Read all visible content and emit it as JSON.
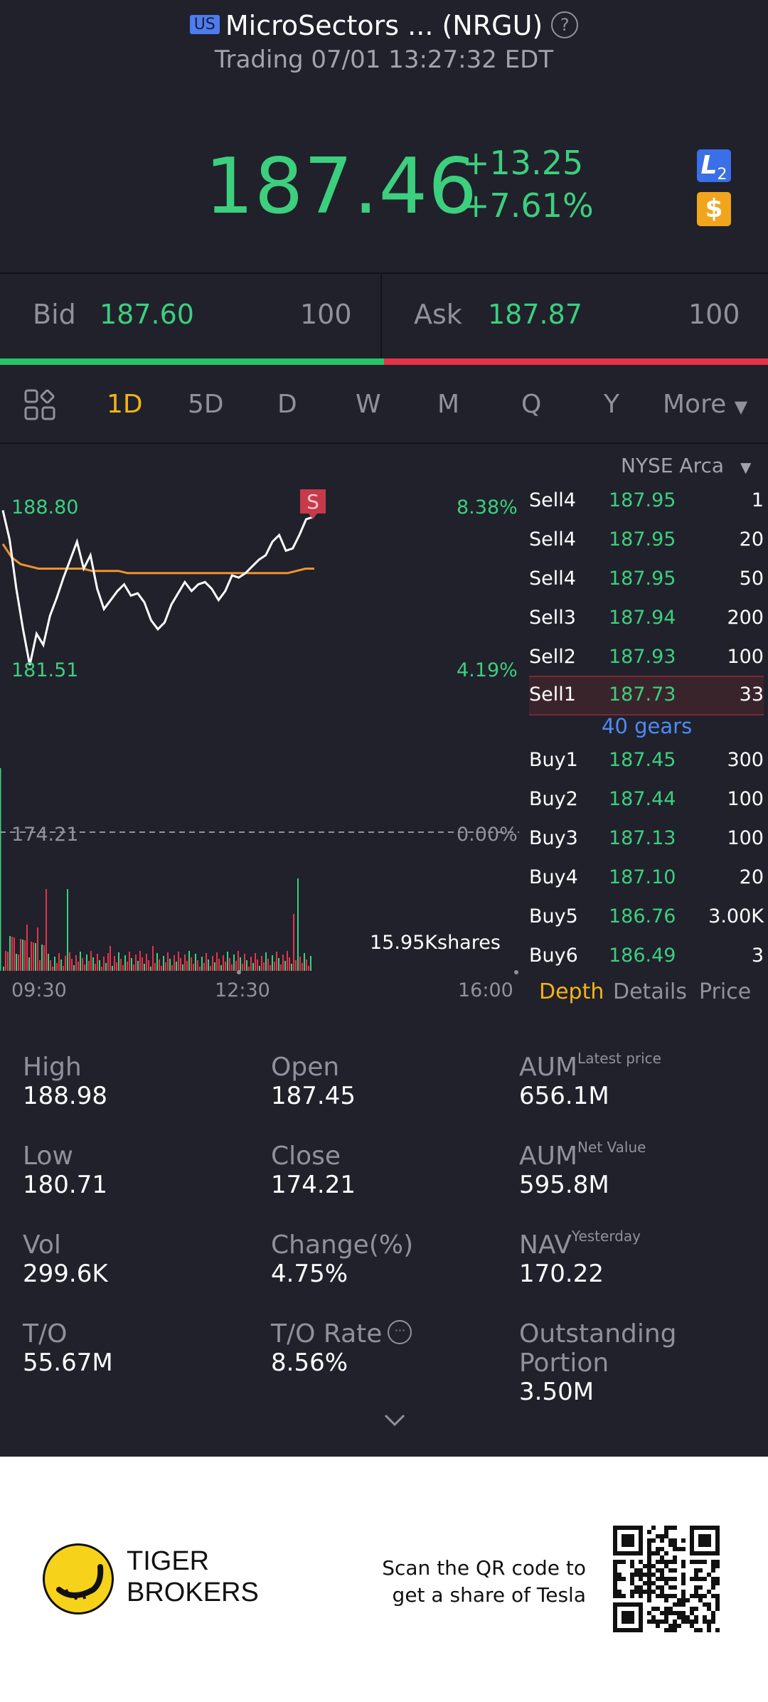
{
  "header": {
    "market_badge": "US",
    "title": "MicroSectors ... (NRGU)",
    "status": "Trading 07/01 13:27:32 EDT",
    "price": "187.46",
    "change": "+13.25",
    "change_pct": "+7.61%",
    "l2_label": "L",
    "l2_sub": "2",
    "dollar_label": "$"
  },
  "bid_ask": {
    "bid_label": "Bid",
    "bid_price": "187.60",
    "bid_qty": "100",
    "ask_label": "Ask",
    "ask_price": "187.87",
    "ask_qty": "100"
  },
  "tabs": [
    "1D",
    "5D",
    "D",
    "W",
    "M",
    "Q",
    "Y",
    "More"
  ],
  "active_tab": "1D",
  "chart": {
    "hi_label": "188.80",
    "lo_label": "181.51",
    "hi_pct": "8.38%",
    "lo_pct": "4.19%",
    "base_label": "174.21",
    "base_pct": "0.00%",
    "volume_label": "15.95Kshares",
    "time_start": "09:30",
    "time_mid": "12:30",
    "time_end": "16:00",
    "signal": "S",
    "colors": {
      "price_line": "#ffffff",
      "avg_line": "#f0932b",
      "up": "#3ccf7e",
      "down": "#e5344a"
    }
  },
  "chart_data": {
    "type": "line",
    "title": "",
    "xlabel": "",
    "ylabel": "",
    "x_ticks": [
      "09:30",
      "12:30",
      "16:00"
    ],
    "ylim": [
      181.51,
      188.8
    ],
    "series": [
      {
        "values": [
          188.5,
          187.2,
          185.0,
          183.2,
          181.6,
          183.0,
          182.5,
          183.8,
          184.6,
          185.5,
          186.3,
          187.1,
          185.9,
          186.5,
          185.0,
          184.1,
          184.5,
          184.9,
          185.2,
          184.7,
          184.8,
          184.4,
          183.6,
          183.2,
          183.5,
          184.3,
          184.8,
          185.3,
          184.9,
          185.2,
          185.3,
          185.0,
          184.5,
          184.9,
          185.6,
          185.5,
          185.7,
          186.0,
          186.3,
          186.5,
          187.1,
          187.4,
          186.7,
          186.8,
          187.4,
          188.1,
          188.2
        ]
      },
      {
        "values": [
          187.0,
          186.4,
          186.1,
          186.0,
          185.9,
          185.9,
          185.9,
          185.9,
          185.9,
          185.9,
          185.8,
          185.8,
          185.8,
          185.8,
          185.7,
          185.7,
          185.7,
          185.7,
          185.7,
          185.7,
          185.7,
          185.7,
          185.7,
          185.7,
          185.7,
          185.7,
          185.7,
          185.7,
          185.7,
          185.7,
          185.7,
          185.7,
          185.7,
          185.8,
          185.9,
          185.9
        ]
      }
    ]
  },
  "order_book": {
    "exchange": "NYSE Arca",
    "sells": [
      {
        "name": "Sell4",
        "price": "187.95",
        "qty": "1"
      },
      {
        "name": "Sell4",
        "price": "187.95",
        "qty": "20"
      },
      {
        "name": "Sell4",
        "price": "187.95",
        "qty": "50"
      },
      {
        "name": "Sell3",
        "price": "187.94",
        "qty": "200"
      },
      {
        "name": "Sell2",
        "price": "187.93",
        "qty": "100"
      },
      {
        "name": "Sell1",
        "price": "187.73",
        "qty": "33"
      }
    ],
    "gears": "40 gears",
    "buys": [
      {
        "name": "Buy1",
        "price": "187.45",
        "qty": "300"
      },
      {
        "name": "Buy2",
        "price": "187.44",
        "qty": "100"
      },
      {
        "name": "Buy3",
        "price": "187.13",
        "qty": "100"
      },
      {
        "name": "Buy4",
        "price": "187.10",
        "qty": "20"
      },
      {
        "name": "Buy5",
        "price": "186.76",
        "qty": "3.00K"
      },
      {
        "name": "Buy6",
        "price": "186.49",
        "qty": "3"
      }
    ],
    "tabs": [
      "Depth",
      "Details",
      "Price"
    ]
  },
  "stats": [
    {
      "label": "High",
      "value": "188.98",
      "sup": ""
    },
    {
      "label": "Open",
      "value": "187.45",
      "sup": ""
    },
    {
      "label": "AUM",
      "value": "656.1M",
      "sup": "Latest price"
    },
    {
      "label": "Low",
      "value": "180.71",
      "sup": ""
    },
    {
      "label": "Close",
      "value": "174.21",
      "sup": ""
    },
    {
      "label": "AUM",
      "value": "595.8M",
      "sup": "Net Value"
    },
    {
      "label": "Vol",
      "value": "299.6K",
      "sup": ""
    },
    {
      "label": "Change(%)",
      "value": "4.75%",
      "sup": ""
    },
    {
      "label": "NAV",
      "value": "170.22",
      "sup": "Yesterday"
    },
    {
      "label": "T/O",
      "value": "55.67M",
      "sup": ""
    },
    {
      "label": "T/O Rate",
      "value": "8.56%",
      "sup": ""
    },
    {
      "label": "Outstanding Portion",
      "value": "3.50M",
      "sup": ""
    }
  ],
  "footer": {
    "brand_line1": "TIGER",
    "brand_line2": "BROKERS",
    "scan_line1": "Scan the QR code to",
    "scan_line2": "get a share of Tesla"
  }
}
